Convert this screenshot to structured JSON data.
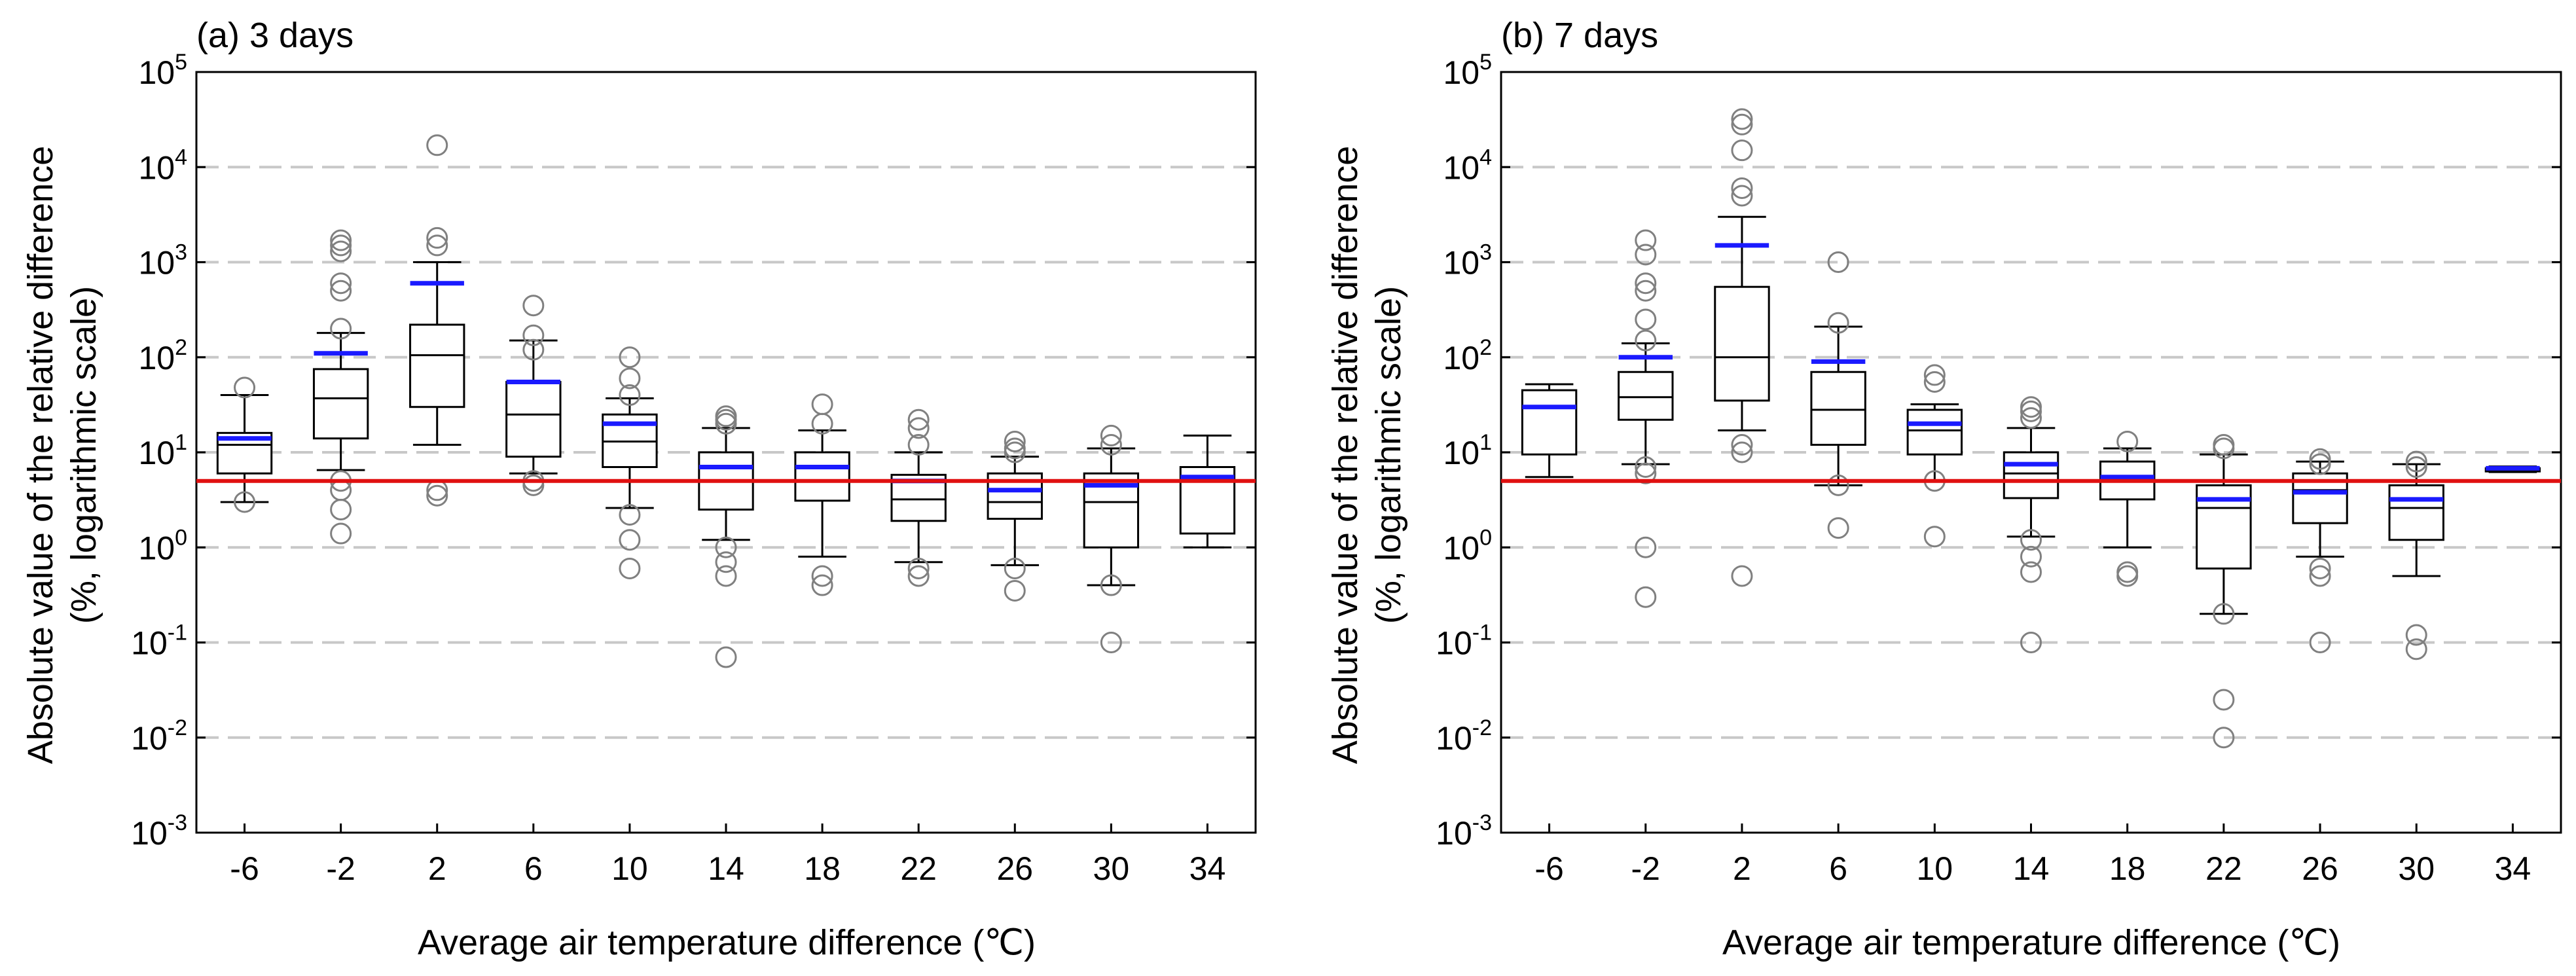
{
  "colors": {
    "box": "#000000",
    "mean": "#1a1aff",
    "reference": "#e01010",
    "grid": "#c8c8c8",
    "outlier": "#808080"
  },
  "chart_data": [
    {
      "type": "box",
      "title": "(a) 3 days",
      "xlabel": "Average air temperature difference (℃)",
      "ylabel_line1": "Absolute value of the relative difference",
      "ylabel_line2": "(%, logarithmic scale)",
      "yscale": "log",
      "ylim": [
        0.001,
        100000
      ],
      "yticks": [
        {
          "value": 0.001,
          "base": "10",
          "exp": "-3"
        },
        {
          "value": 0.01,
          "base": "10",
          "exp": "-2"
        },
        {
          "value": 0.1,
          "base": "10",
          "exp": "-1"
        },
        {
          "value": 1,
          "base": "10",
          "exp": "0"
        },
        {
          "value": 10,
          "base": "10",
          "exp": "1"
        },
        {
          "value": 100,
          "base": "10",
          "exp": "2"
        },
        {
          "value": 1000,
          "base": "10",
          "exp": "3"
        },
        {
          "value": 10000,
          "base": "10",
          "exp": "4"
        },
        {
          "value": 100000,
          "base": "10",
          "exp": "5"
        }
      ],
      "grid_lines": [
        0.01,
        0.1,
        1,
        10,
        100,
        1000,
        10000
      ],
      "reference_line": 5,
      "categories": [
        "-6",
        "-2",
        "2",
        "6",
        "10",
        "14",
        "18",
        "22",
        "26",
        "30",
        "34"
      ],
      "boxes": [
        {
          "whislo": 3,
          "q1": 6,
          "med": 12,
          "q3": 16,
          "whishi": 40,
          "mean": 14,
          "fliers": [
            48,
            3
          ]
        },
        {
          "whislo": 6.5,
          "q1": 14,
          "med": 37,
          "q3": 75,
          "whishi": 180,
          "mean": 110,
          "fliers": [
            1700,
            1500,
            1300,
            600,
            500,
            200,
            5,
            4,
            2.5,
            1.4
          ]
        },
        {
          "whislo": 12,
          "q1": 30,
          "med": 105,
          "q3": 220,
          "whishi": 1000,
          "mean": 600,
          "fliers": [
            17000,
            1800,
            1500,
            4,
            3.5
          ]
        },
        {
          "whislo": 6,
          "q1": 9,
          "med": 25,
          "q3": 55,
          "whishi": 150,
          "mean": 55,
          "fliers": [
            350,
            170,
            120,
            5,
            4.5
          ]
        },
        {
          "whislo": 2.6,
          "q1": 7,
          "med": 13,
          "q3": 25,
          "whishi": 37,
          "mean": 20,
          "fliers": [
            100,
            60,
            40,
            2.2,
            1.2,
            0.6
          ]
        },
        {
          "whislo": 1.2,
          "q1": 2.5,
          "med": 5,
          "q3": 10,
          "whishi": 18,
          "mean": 7,
          "fliers": [
            24,
            22,
            20,
            1.0,
            0.7,
            0.5,
            0.07
          ]
        },
        {
          "whislo": 0.8,
          "q1": 3.1,
          "med": 5,
          "q3": 10,
          "whishi": 17,
          "mean": 7,
          "fliers": [
            32,
            20,
            0.5,
            0.4
          ]
        },
        {
          "whislo": 0.7,
          "q1": 1.9,
          "med": 3.2,
          "q3": 5.8,
          "whishi": 10,
          "mean": 5,
          "fliers": [
            22,
            18,
            12,
            0.6,
            0.5
          ]
        },
        {
          "whislo": 0.65,
          "q1": 2,
          "med": 3,
          "q3": 6,
          "whishi": 9,
          "mean": 4,
          "fliers": [
            13,
            11,
            10,
            0.6,
            0.35
          ]
        },
        {
          "whislo": 0.4,
          "q1": 1,
          "med": 3,
          "q3": 6,
          "whishi": 11,
          "mean": 4.5,
          "fliers": [
            15,
            12,
            0.4,
            0.1
          ]
        },
        {
          "whislo": 1,
          "q1": 1.4,
          "med": 5.5,
          "q3": 7,
          "whishi": 15,
          "mean": 5.5,
          "fliers": []
        }
      ]
    },
    {
      "type": "box",
      "title": "(b) 7 days",
      "xlabel": "Average air temperature difference (℃)",
      "ylabel_line1": "Absolute value of the relative difference",
      "ylabel_line2": "(%, logarithmic scale)",
      "yscale": "log",
      "ylim": [
        0.001,
        100000
      ],
      "yticks": [
        {
          "value": 0.001,
          "base": "10",
          "exp": "-3"
        },
        {
          "value": 0.01,
          "base": "10",
          "exp": "-2"
        },
        {
          "value": 0.1,
          "base": "10",
          "exp": "-1"
        },
        {
          "value": 1,
          "base": "10",
          "exp": "0"
        },
        {
          "value": 10,
          "base": "10",
          "exp": "1"
        },
        {
          "value": 100,
          "base": "10",
          "exp": "2"
        },
        {
          "value": 1000,
          "base": "10",
          "exp": "3"
        },
        {
          "value": 10000,
          "base": "10",
          "exp": "4"
        },
        {
          "value": 100000,
          "base": "10",
          "exp": "5"
        }
      ],
      "grid_lines": [
        0.01,
        0.1,
        1,
        10,
        100,
        1000,
        10000
      ],
      "reference_line": 5,
      "categories": [
        "-6",
        "-2",
        "2",
        "6",
        "10",
        "14",
        "18",
        "22",
        "26",
        "30",
        "34"
      ],
      "boxes": [
        {
          "whislo": 5.5,
          "q1": 9.5,
          "med": 30,
          "q3": 45,
          "whishi": 52,
          "mean": 30,
          "fliers": []
        },
        {
          "whislo": 7.5,
          "q1": 22,
          "med": 38,
          "q3": 70,
          "whishi": 140,
          "mean": 100,
          "fliers": [
            1700,
            1200,
            600,
            500,
            250,
            150,
            7,
            6,
            1.0,
            0.3
          ]
        },
        {
          "whislo": 17,
          "q1": 35,
          "med": 100,
          "q3": 550,
          "whishi": 3000,
          "mean": 1500,
          "fliers": [
            32000,
            28000,
            15000,
            6000,
            5000,
            12,
            10,
            0.5
          ]
        },
        {
          "whislo": 4.5,
          "q1": 12,
          "med": 28,
          "q3": 70,
          "whishi": 210,
          "mean": 90,
          "fliers": [
            1000,
            230,
            4.5,
            1.6
          ]
        },
        {
          "whislo": 5,
          "q1": 9.5,
          "med": 17,
          "q3": 28,
          "whishi": 32,
          "mean": 20,
          "fliers": [
            65,
            55,
            5,
            1.3
          ]
        },
        {
          "whislo": 1.3,
          "q1": 3.3,
          "med": 6,
          "q3": 10,
          "whishi": 18,
          "mean": 7.5,
          "fliers": [
            30,
            27,
            23,
            1.2,
            0.8,
            0.55,
            0.1
          ]
        },
        {
          "whislo": 1,
          "q1": 3.2,
          "med": 5,
          "q3": 8,
          "whishi": 11,
          "mean": 5.5,
          "fliers": [
            13,
            0.55,
            0.5
          ]
        },
        {
          "whislo": 0.2,
          "q1": 0.6,
          "med": 2.6,
          "q3": 4.5,
          "whishi": 9.5,
          "mean": 3.2,
          "fliers": [
            12,
            11,
            0.2,
            0.025,
            0.01
          ]
        },
        {
          "whislo": 0.8,
          "q1": 1.8,
          "med": 4,
          "q3": 6,
          "whishi": 8,
          "mean": 3.8,
          "fliers": [
            8.5,
            7.5,
            0.6,
            0.5,
            0.1
          ]
        },
        {
          "whislo": 0.5,
          "q1": 1.2,
          "med": 2.6,
          "q3": 4.5,
          "whishi": 7.5,
          "mean": 3.2,
          "fliers": [
            8,
            7,
            0.12,
            0.085
          ]
        },
        {
          "whislo": 6.2,
          "q1": 6.3,
          "med": 6.6,
          "q3": 6.8,
          "whishi": 7.1,
          "mean": 6.8,
          "fliers": []
        }
      ]
    }
  ]
}
